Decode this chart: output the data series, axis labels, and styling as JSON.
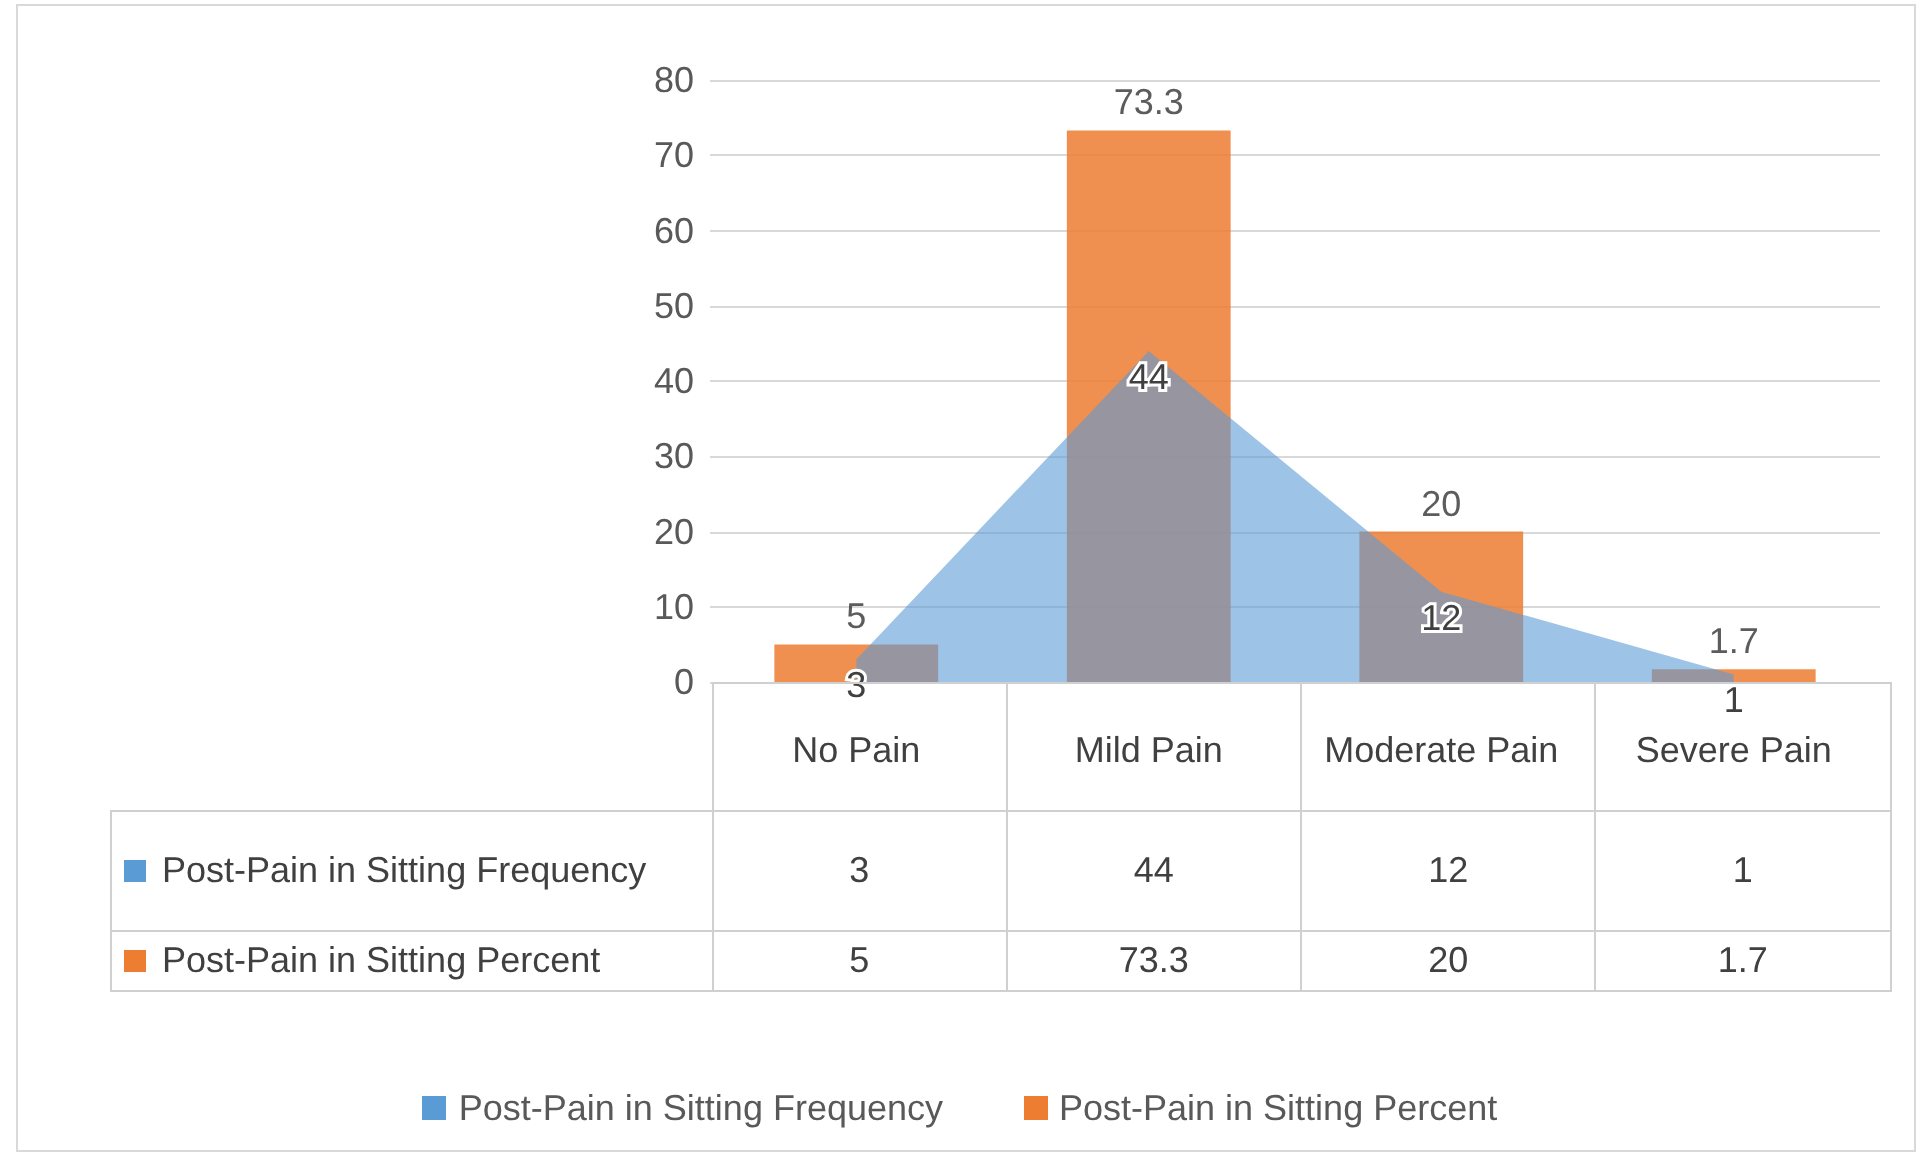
{
  "chart_data": {
    "type": "bar",
    "categories": [
      "No Pain",
      "Mild Pain",
      "Moderate Pain",
      "Severe Pain"
    ],
    "series": [
      {
        "name": "Post-Pain in Sitting Frequency",
        "type": "area",
        "color": "#5b9bd5",
        "values": [
          3,
          44,
          12,
          1
        ],
        "value_labels": [
          "3",
          "44",
          "12",
          "1"
        ]
      },
      {
        "name": "Post-Pain in Sitting Percent",
        "type": "bar",
        "color": "#ed7d31",
        "values": [
          5,
          73.3,
          20,
          1.7
        ],
        "value_labels": [
          "5",
          "73.3",
          "20",
          "1.7"
        ]
      }
    ],
    "ylim": [
      0,
      80
    ],
    "yticks": [
      0,
      10,
      20,
      30,
      40,
      50,
      60,
      70,
      80
    ],
    "grid": "y",
    "legend": "bottom",
    "data_labels": true
  }
}
